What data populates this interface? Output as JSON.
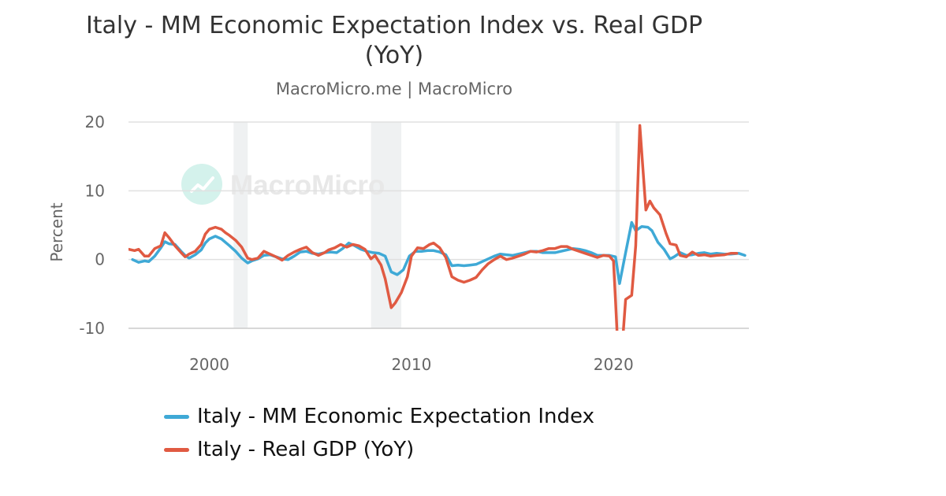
{
  "chart_data": {
    "type": "line",
    "title": "Italy - MM Economic Expectation Index vs. Real GDP (YoY)",
    "subtitle": "MacroMicro.me | MacroMicro",
    "watermark": "MacroMicro",
    "ylabel": "Percent",
    "xlabel": "",
    "xlim": [
      1996,
      2026.7
    ],
    "ylim": [
      -10,
      20
    ],
    "x_ticks": [
      2000,
      2010,
      2020
    ],
    "y_ticks": [
      -10,
      0,
      10,
      20
    ],
    "grid": true,
    "legend_position": "bottom",
    "recession_bands": [
      [
        2001.2,
        2001.9
      ],
      [
        2008.0,
        2009.5
      ],
      [
        2020.1,
        2020.3
      ]
    ],
    "series": [
      {
        "name": "Italy - MM Economic Expectation Index",
        "color": "#3fa9d6",
        "points": [
          [
            1996.2,
            0.0
          ],
          [
            1996.5,
            -0.4
          ],
          [
            1996.8,
            -0.2
          ],
          [
            1997.0,
            -0.3
          ],
          [
            1997.3,
            0.5
          ],
          [
            1997.6,
            1.7
          ],
          [
            1997.8,
            2.6
          ],
          [
            1998.0,
            2.3
          ],
          [
            1998.3,
            2.2
          ],
          [
            1998.6,
            1.2
          ],
          [
            1998.8,
            0.6
          ],
          [
            1999.0,
            0.2
          ],
          [
            1999.3,
            0.7
          ],
          [
            1999.6,
            1.4
          ],
          [
            1999.8,
            2.4
          ],
          [
            2000.0,
            3.0
          ],
          [
            2000.3,
            3.4
          ],
          [
            2000.6,
            3.0
          ],
          [
            2000.8,
            2.5
          ],
          [
            2001.0,
            2.0
          ],
          [
            2001.3,
            1.2
          ],
          [
            2001.6,
            0.2
          ],
          [
            2001.9,
            -0.5
          ],
          [
            2002.1,
            -0.2
          ],
          [
            2002.4,
            0.1
          ],
          [
            2002.7,
            0.6
          ],
          [
            2003.0,
            0.7
          ],
          [
            2003.3,
            0.4
          ],
          [
            2003.6,
            0.1
          ],
          [
            2003.9,
            0.0
          ],
          [
            2004.2,
            0.5
          ],
          [
            2004.5,
            1.1
          ],
          [
            2004.8,
            1.2
          ],
          [
            2005.1,
            0.9
          ],
          [
            2005.4,
            0.8
          ],
          [
            2005.7,
            1.0
          ],
          [
            2006.0,
            1.1
          ],
          [
            2006.3,
            1.0
          ],
          [
            2006.6,
            1.6
          ],
          [
            2006.9,
            2.4
          ],
          [
            2007.2,
            2.0
          ],
          [
            2007.5,
            1.5
          ],
          [
            2007.8,
            1.2
          ],
          [
            2008.1,
            1.0
          ],
          [
            2008.4,
            0.9
          ],
          [
            2008.7,
            0.5
          ],
          [
            2009.0,
            -1.8
          ],
          [
            2009.3,
            -2.2
          ],
          [
            2009.6,
            -1.5
          ],
          [
            2009.9,
            0.5
          ],
          [
            2010.2,
            1.2
          ],
          [
            2010.5,
            1.2
          ],
          [
            2010.8,
            1.3
          ],
          [
            2011.1,
            1.3
          ],
          [
            2011.4,
            1.1
          ],
          [
            2011.7,
            0.7
          ],
          [
            2012.0,
            -0.9
          ],
          [
            2012.3,
            -0.8
          ],
          [
            2012.6,
            -0.9
          ],
          [
            2012.9,
            -0.8
          ],
          [
            2013.2,
            -0.7
          ],
          [
            2013.5,
            -0.3
          ],
          [
            2013.8,
            0.1
          ],
          [
            2014.1,
            0.5
          ],
          [
            2014.4,
            0.8
          ],
          [
            2014.7,
            0.7
          ],
          [
            2015.0,
            0.6
          ],
          [
            2015.3,
            0.8
          ],
          [
            2015.6,
            1.0
          ],
          [
            2015.9,
            1.2
          ],
          [
            2016.2,
            1.2
          ],
          [
            2016.5,
            1.0
          ],
          [
            2016.8,
            1.0
          ],
          [
            2017.1,
            1.0
          ],
          [
            2017.4,
            1.2
          ],
          [
            2017.7,
            1.4
          ],
          [
            2018.0,
            1.6
          ],
          [
            2018.3,
            1.5
          ],
          [
            2018.6,
            1.3
          ],
          [
            2018.9,
            1.0
          ],
          [
            2019.2,
            0.6
          ],
          [
            2019.5,
            0.6
          ],
          [
            2019.8,
            0.6
          ],
          [
            2020.1,
            0.4
          ],
          [
            2020.3,
            -3.5
          ],
          [
            2020.6,
            1.0
          ],
          [
            2020.9,
            5.4
          ],
          [
            2021.1,
            4.2
          ],
          [
            2021.4,
            4.8
          ],
          [
            2021.7,
            4.7
          ],
          [
            2021.9,
            4.2
          ],
          [
            2022.2,
            2.5
          ],
          [
            2022.5,
            1.5
          ],
          [
            2022.8,
            0.1
          ],
          [
            2023.0,
            0.4
          ],
          [
            2023.3,
            1.0
          ],
          [
            2023.6,
            0.6
          ],
          [
            2023.9,
            0.7
          ],
          [
            2024.2,
            0.9
          ],
          [
            2024.5,
            1.0
          ],
          [
            2024.8,
            0.8
          ],
          [
            2025.1,
            0.9
          ],
          [
            2025.5,
            0.8
          ],
          [
            2025.8,
            0.8
          ],
          [
            2026.2,
            0.9
          ],
          [
            2026.5,
            0.6
          ]
        ]
      },
      {
        "name": "Italy - Real GDP (YoY)",
        "color": "#e05a42",
        "points": [
          [
            1996.0,
            1.5
          ],
          [
            1996.3,
            1.3
          ],
          [
            1996.5,
            1.5
          ],
          [
            1996.8,
            0.5
          ],
          [
            1997.0,
            0.5
          ],
          [
            1997.3,
            1.6
          ],
          [
            1997.6,
            2.0
          ],
          [
            1997.8,
            3.9
          ],
          [
            1998.0,
            3.2
          ],
          [
            1998.3,
            2.0
          ],
          [
            1998.6,
            1.0
          ],
          [
            1998.8,
            0.4
          ],
          [
            1999.0,
            0.8
          ],
          [
            1999.3,
            1.2
          ],
          [
            1999.6,
            2.2
          ],
          [
            1999.8,
            3.7
          ],
          [
            2000.0,
            4.4
          ],
          [
            2000.3,
            4.7
          ],
          [
            2000.6,
            4.4
          ],
          [
            2000.8,
            3.9
          ],
          [
            2001.0,
            3.5
          ],
          [
            2001.3,
            2.8
          ],
          [
            2001.6,
            1.8
          ],
          [
            2001.9,
            0.2
          ],
          [
            2002.1,
            0.0
          ],
          [
            2002.4,
            0.2
          ],
          [
            2002.7,
            1.2
          ],
          [
            2003.0,
            0.8
          ],
          [
            2003.3,
            0.4
          ],
          [
            2003.6,
            -0.1
          ],
          [
            2003.9,
            0.6
          ],
          [
            2004.2,
            1.1
          ],
          [
            2004.5,
            1.5
          ],
          [
            2004.8,
            1.8
          ],
          [
            2005.1,
            1.0
          ],
          [
            2005.4,
            0.6
          ],
          [
            2005.7,
            1.0
          ],
          [
            2005.9,
            1.4
          ],
          [
            2006.2,
            1.7
          ],
          [
            2006.5,
            2.2
          ],
          [
            2006.8,
            1.8
          ],
          [
            2007.1,
            2.2
          ],
          [
            2007.4,
            2.0
          ],
          [
            2007.7,
            1.5
          ],
          [
            2008.0,
            0.1
          ],
          [
            2008.2,
            0.6
          ],
          [
            2008.5,
            -0.8
          ],
          [
            2008.7,
            -2.8
          ],
          [
            2009.0,
            -7.0
          ],
          [
            2009.2,
            -6.3
          ],
          [
            2009.5,
            -4.8
          ],
          [
            2009.8,
            -2.5
          ],
          [
            2010.0,
            0.5
          ],
          [
            2010.3,
            1.7
          ],
          [
            2010.6,
            1.6
          ],
          [
            2010.9,
            2.2
          ],
          [
            2011.1,
            2.4
          ],
          [
            2011.4,
            1.7
          ],
          [
            2011.7,
            0.3
          ],
          [
            2012.0,
            -2.5
          ],
          [
            2012.3,
            -3.0
          ],
          [
            2012.6,
            -3.3
          ],
          [
            2012.9,
            -3.0
          ],
          [
            2013.2,
            -2.6
          ],
          [
            2013.5,
            -1.5
          ],
          [
            2013.8,
            -0.6
          ],
          [
            2014.1,
            0.0
          ],
          [
            2014.4,
            0.5
          ],
          [
            2014.7,
            0.0
          ],
          [
            2015.0,
            0.2
          ],
          [
            2015.3,
            0.5
          ],
          [
            2015.6,
            0.8
          ],
          [
            2015.9,
            1.2
          ],
          [
            2016.2,
            1.1
          ],
          [
            2016.5,
            1.3
          ],
          [
            2016.8,
            1.6
          ],
          [
            2017.1,
            1.6
          ],
          [
            2017.4,
            1.9
          ],
          [
            2017.7,
            1.9
          ],
          [
            2018.0,
            1.5
          ],
          [
            2018.3,
            1.2
          ],
          [
            2018.6,
            0.9
          ],
          [
            2018.9,
            0.6
          ],
          [
            2019.2,
            0.3
          ],
          [
            2019.5,
            0.6
          ],
          [
            2019.8,
            0.5
          ],
          [
            2020.0,
            -0.2
          ],
          [
            2020.1,
            -6.0
          ],
          [
            2020.3,
            -18.0
          ],
          [
            2020.6,
            -5.8
          ],
          [
            2020.9,
            -5.2
          ],
          [
            2021.1,
            2.0
          ],
          [
            2021.3,
            19.5
          ],
          [
            2021.6,
            7.2
          ],
          [
            2021.8,
            8.5
          ],
          [
            2022.0,
            7.5
          ],
          [
            2022.3,
            6.5
          ],
          [
            2022.6,
            3.8
          ],
          [
            2022.8,
            2.3
          ],
          [
            2023.1,
            2.1
          ],
          [
            2023.3,
            0.6
          ],
          [
            2023.6,
            0.4
          ],
          [
            2023.9,
            1.1
          ],
          [
            2024.2,
            0.6
          ],
          [
            2024.5,
            0.7
          ],
          [
            2024.8,
            0.5
          ],
          [
            2025.1,
            0.6
          ],
          [
            2025.5,
            0.7
          ],
          [
            2025.8,
            0.9
          ],
          [
            2026.1,
            0.9
          ]
        ]
      }
    ]
  }
}
